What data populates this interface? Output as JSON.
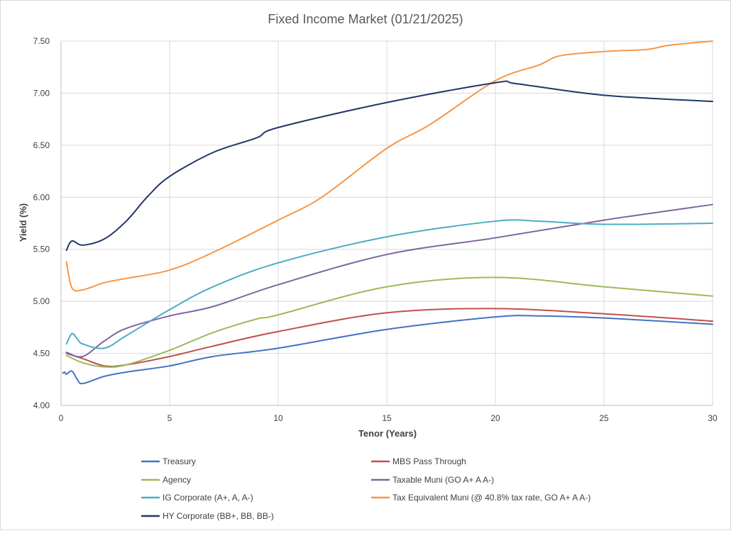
{
  "chart_data": {
    "type": "line",
    "title": "Fixed Income Market (01/21/2025)",
    "xlabel": "Tenor (Years)",
    "ylabel": "Yield (%)",
    "xlim": [
      0,
      30
    ],
    "ylim": [
      4.0,
      7.5
    ],
    "x_ticks": [
      0,
      5,
      10,
      15,
      20,
      25,
      30
    ],
    "y_ticks": [
      4.0,
      4.5,
      5.0,
      5.5,
      6.0,
      6.5,
      7.0,
      7.5
    ],
    "y_tick_labels": [
      "4.00",
      "4.50",
      "5.00",
      "5.50",
      "6.00",
      "6.50",
      "7.00",
      "7.50"
    ],
    "x_tick_labels": [
      "0",
      "5",
      "10",
      "15",
      "20",
      "25",
      "30"
    ],
    "grid": "vertical and horizontal",
    "legend_position": "bottom",
    "series": [
      {
        "name": "Treasury",
        "color": "#4472C4",
        "points": [
          [
            0.08,
            4.31
          ],
          [
            0.17,
            4.32
          ],
          [
            0.25,
            4.3
          ],
          [
            0.5,
            4.33
          ],
          [
            0.75,
            4.25
          ],
          [
            1,
            4.21
          ],
          [
            2,
            4.28
          ],
          [
            3,
            4.32
          ],
          [
            5,
            4.38
          ],
          [
            7,
            4.47
          ],
          [
            10,
            4.55
          ],
          [
            15,
            4.73
          ],
          [
            20,
            4.85
          ],
          [
            22,
            4.86
          ],
          [
            25,
            4.84
          ],
          [
            30,
            4.78
          ]
        ]
      },
      {
        "name": "MBS Pass Through",
        "color": "#C0504D",
        "points": [
          [
            0.25,
            4.5
          ],
          [
            1,
            4.45
          ],
          [
            2,
            4.38
          ],
          [
            3,
            4.39
          ],
          [
            5,
            4.47
          ],
          [
            7,
            4.57
          ],
          [
            10,
            4.71
          ],
          [
            15,
            4.89
          ],
          [
            20,
            4.93
          ],
          [
            25,
            4.88
          ],
          [
            30,
            4.81
          ]
        ]
      },
      {
        "name": "Agency",
        "color": "#9BBB59",
        "points": [
          [
            0.25,
            4.48
          ],
          [
            1,
            4.41
          ],
          [
            2,
            4.37
          ],
          [
            3,
            4.39
          ],
          [
            5,
            4.53
          ],
          [
            7,
            4.7
          ],
          [
            9,
            4.83
          ],
          [
            10,
            4.87
          ],
          [
            15,
            5.14
          ],
          [
            20,
            5.23
          ],
          [
            25,
            5.14
          ],
          [
            30,
            5.05
          ]
        ]
      },
      {
        "name": "Taxable Muni (GO A+ A A-)",
        "color": "#8064A2",
        "points": [
          [
            0.25,
            4.51
          ],
          [
            1,
            4.47
          ],
          [
            2,
            4.62
          ],
          [
            3,
            4.74
          ],
          [
            5,
            4.86
          ],
          [
            7,
            4.95
          ],
          [
            10,
            5.16
          ],
          [
            15,
            5.45
          ],
          [
            20,
            5.61
          ],
          [
            25,
            5.78
          ],
          [
            30,
            5.93
          ]
        ]
      },
      {
        "name": "IG Corporate (A+, A, A-)",
        "color": "#4BACC6",
        "points": [
          [
            0.25,
            4.59
          ],
          [
            0.5,
            4.69
          ],
          [
            0.75,
            4.64
          ],
          [
            1,
            4.59
          ],
          [
            2,
            4.55
          ],
          [
            3,
            4.67
          ],
          [
            5,
            4.92
          ],
          [
            7,
            5.14
          ],
          [
            10,
            5.37
          ],
          [
            15,
            5.62
          ],
          [
            20,
            5.77
          ],
          [
            22,
            5.77
          ],
          [
            25,
            5.74
          ],
          [
            30,
            5.75
          ]
        ]
      },
      {
        "name": "Tax Equivalent Muni (@ 40.8% tax rate, GO A+ A A-)",
        "color": "#F79646",
        "points": [
          [
            0.25,
            5.38
          ],
          [
            0.5,
            5.13
          ],
          [
            1,
            5.11
          ],
          [
            2,
            5.18
          ],
          [
            3,
            5.22
          ],
          [
            5,
            5.3
          ],
          [
            7,
            5.47
          ],
          [
            10,
            5.78
          ],
          [
            12,
            6.0
          ],
          [
            15,
            6.47
          ],
          [
            17,
            6.7
          ],
          [
            20,
            7.12
          ],
          [
            22,
            7.27
          ],
          [
            23,
            7.36
          ],
          [
            25,
            7.4
          ],
          [
            27,
            7.42
          ],
          [
            28,
            7.46
          ],
          [
            30,
            7.5
          ]
        ]
      },
      {
        "name": "HY Corporate (BB+, BB, BB-)",
        "color": "#1F3864",
        "points": [
          [
            0.25,
            5.49
          ],
          [
            0.5,
            5.58
          ],
          [
            1,
            5.54
          ],
          [
            2,
            5.6
          ],
          [
            3,
            5.77
          ],
          [
            4,
            6.01
          ],
          [
            5,
            6.2
          ],
          [
            7,
            6.43
          ],
          [
            9,
            6.57
          ],
          [
            10,
            6.67
          ],
          [
            15,
            6.91
          ],
          [
            20,
            7.1
          ],
          [
            21,
            7.09
          ],
          [
            25,
            6.98
          ],
          [
            30,
            6.92
          ]
        ]
      }
    ]
  }
}
